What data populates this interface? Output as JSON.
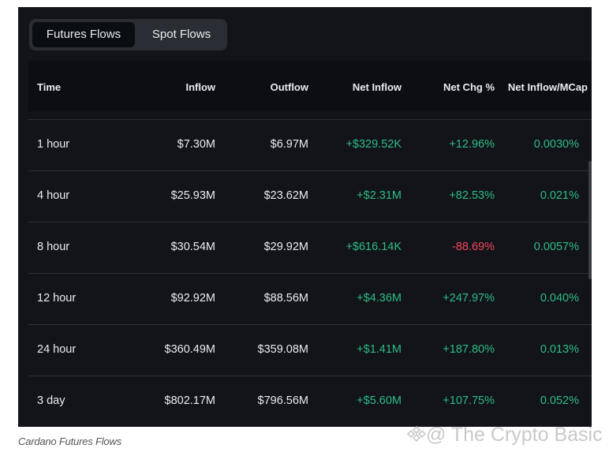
{
  "tabs": [
    "Futures Flows",
    "Spot Flows"
  ],
  "columns": [
    "Time",
    "Inflow",
    "Outflow",
    "Net Inflow",
    "Net Chg %",
    "Net Inflow/MCap"
  ],
  "rows": [
    {
      "time": "1 hour",
      "inflow": "$7.30M",
      "outflow": "$6.97M",
      "net_inflow": "+$329.52K",
      "net_chg": "+12.96%",
      "mcap": "0.0030%"
    },
    {
      "time": "4 hour",
      "inflow": "$25.93M",
      "outflow": "$23.62M",
      "net_inflow": "+$2.31M",
      "net_chg": "+82.53%",
      "mcap": "0.021%"
    },
    {
      "time": "8 hour",
      "inflow": "$30.54M",
      "outflow": "$29.92M",
      "net_inflow": "+$616.14K",
      "net_chg": "-88.69%",
      "mcap": "0.0057%"
    },
    {
      "time": "12 hour",
      "inflow": "$92.92M",
      "outflow": "$88.56M",
      "net_inflow": "+$4.36M",
      "net_chg": "+247.97%",
      "mcap": "0.040%"
    },
    {
      "time": "24 hour",
      "inflow": "$360.49M",
      "outflow": "$359.08M",
      "net_inflow": "+$1.41M",
      "net_chg": "+187.80%",
      "mcap": "0.013%"
    },
    {
      "time": "3 day",
      "inflow": "$802.17M",
      "outflow": "$796.56M",
      "net_inflow": "+$5.60M",
      "net_chg": "+107.75%",
      "mcap": "0.052%"
    }
  ],
  "caption": "Cardano Futures Flows",
  "watermark": "@ The Crypto Basic",
  "colors": {
    "positive": "#2ebd85",
    "negative": "#f6465d"
  }
}
